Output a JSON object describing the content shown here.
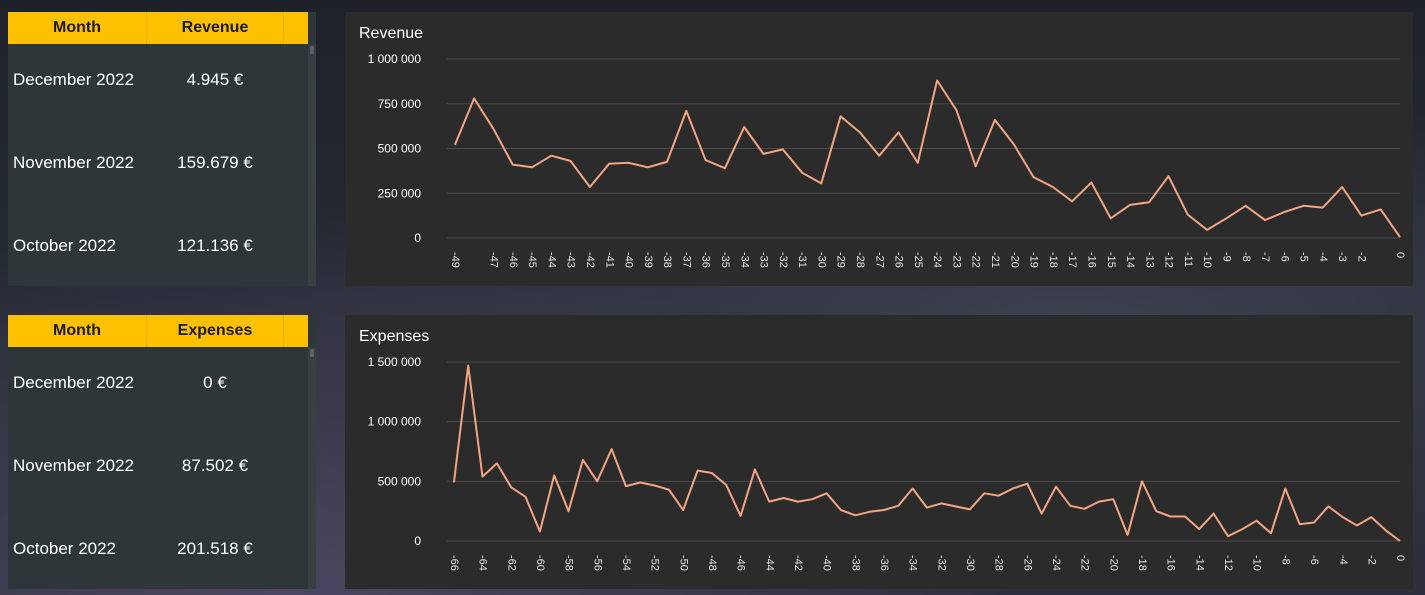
{
  "revenue_table": {
    "headers": [
      "Month",
      "Revenue"
    ],
    "rows": [
      {
        "month": "December 2022",
        "value": "4.945 €"
      },
      {
        "month": "November 2022",
        "value": "159.679 €"
      },
      {
        "month": "October 2022",
        "value": "121.136 €"
      }
    ]
  },
  "expenses_table": {
    "headers": [
      "Month",
      "Expenses"
    ],
    "rows": [
      {
        "month": "December 2022",
        "value": "0 €"
      },
      {
        "month": "November 2022",
        "value": "87.502 €"
      },
      {
        "month": "October 2022",
        "value": "201.518 €"
      }
    ]
  },
  "chart_data": [
    {
      "type": "line",
      "title": "Revenue",
      "xlabel": "",
      "ylabel": "",
      "ylim": [
        0,
        1000000
      ],
      "y_ticks": [
        0,
        250000,
        500000,
        750000,
        1000000
      ],
      "y_tick_labels": [
        "0",
        "250 000",
        "500 000",
        "750 000",
        "1 000 000"
      ],
      "x_tick_labels": [
        "-49",
        "-47",
        "-46",
        "-45",
        "-44",
        "-43",
        "-42",
        "-41",
        "-40",
        "-39",
        "-38",
        "-37",
        "-36",
        "-35",
        "-34",
        "-33",
        "-32",
        "-31",
        "-30",
        "-29",
        "-28",
        "-27",
        "-26",
        "-25",
        "-24",
        "-23",
        "-22",
        "-21",
        "-20",
        "-19",
        "-18",
        "-17",
        "-16",
        "-15",
        "-14",
        "-13",
        "-12",
        "-11",
        "-10",
        "-9",
        "-8",
        "-7",
        "-6",
        "-5",
        "-4",
        "-3",
        "-2",
        "0"
      ],
      "line_color": "#f4a582",
      "grid": true,
      "x": [
        -49,
        -48,
        -47,
        -46,
        -45,
        -44,
        -43,
        -42,
        -41,
        -40,
        -39,
        -38,
        -37,
        -36,
        -35,
        -34,
        -33,
        -32,
        -31,
        -30,
        -29,
        -28,
        -27,
        -26,
        -25,
        -24,
        -23,
        -22,
        -21,
        -20,
        -19,
        -18,
        -17,
        -16,
        -15,
        -14,
        -13,
        -12,
        -11,
        -10,
        -9,
        -8,
        -7,
        -6,
        -5,
        -4,
        -3,
        -2,
        -1,
        0
      ],
      "values": [
        520000,
        780000,
        610000,
        410000,
        395000,
        460000,
        430000,
        285000,
        415000,
        420000,
        395000,
        425000,
        710000,
        435000,
        390000,
        620000,
        470000,
        495000,
        365000,
        305000,
        680000,
        590000,
        460000,
        590000,
        420000,
        880000,
        715000,
        400000,
        660000,
        520000,
        340000,
        285000,
        205000,
        310000,
        110000,
        185000,
        200000,
        345000,
        130000,
        45000,
        110000,
        180000,
        100000,
        145000,
        180000,
        170000,
        285000,
        125000,
        160000,
        4945
      ]
    },
    {
      "type": "line",
      "title": "Expenses",
      "xlabel": "",
      "ylabel": "",
      "ylim": [
        0,
        1500000
      ],
      "y_ticks": [
        0,
        500000,
        1000000,
        1500000
      ],
      "y_tick_labels": [
        "0",
        "500 000",
        "1 000 000",
        "1 500 000"
      ],
      "x_tick_labels": [
        "-66",
        "-64",
        "-62",
        "-60",
        "-58",
        "-56",
        "-54",
        "-52",
        "-50",
        "-48",
        "-46",
        "-44",
        "-42",
        "-40",
        "-38",
        "-36",
        "-34",
        "-32",
        "-30",
        "-28",
        "-26",
        "-24",
        "-22",
        "-20",
        "-18",
        "-16",
        "-14",
        "-12",
        "-10",
        "-8",
        "-6",
        "-4",
        "-2",
        "0"
      ],
      "line_color": "#f4a582",
      "grid": true,
      "x": [
        -66,
        -65,
        -64,
        -63,
        -62,
        -61,
        -60,
        -59,
        -58,
        -57,
        -56,
        -55,
        -54,
        -53,
        -52,
        -51,
        -50,
        -49,
        -48,
        -47,
        -46,
        -45,
        -44,
        -43,
        -42,
        -41,
        -40,
        -39,
        -38,
        -37,
        -36,
        -35,
        -34,
        -33,
        -32,
        -31,
        -30,
        -29,
        -28,
        -27,
        -26,
        -25,
        -24,
        -23,
        -22,
        -21,
        -20,
        -19,
        -18,
        -17,
        -16,
        -15,
        -14,
        -13,
        -12,
        -11,
        -10,
        -9,
        -8,
        -7,
        -6,
        -5,
        -4,
        -3,
        -2,
        -1,
        0
      ],
      "values": [
        490000,
        1470000,
        540000,
        650000,
        450000,
        370000,
        80000,
        550000,
        250000,
        680000,
        500000,
        770000,
        460000,
        490000,
        465000,
        430000,
        260000,
        590000,
        570000,
        470000,
        210000,
        600000,
        330000,
        360000,
        330000,
        350000,
        400000,
        260000,
        215000,
        245000,
        260000,
        295000,
        440000,
        280000,
        315000,
        290000,
        265000,
        400000,
        380000,
        440000,
        480000,
        230000,
        455000,
        295000,
        270000,
        330000,
        350000,
        50000,
        500000,
        250000,
        205000,
        205000,
        100000,
        230000,
        40000,
        100000,
        170000,
        65000,
        440000,
        140000,
        155000,
        290000,
        200000,
        130000,
        200000,
        90000,
        0
      ]
    }
  ]
}
